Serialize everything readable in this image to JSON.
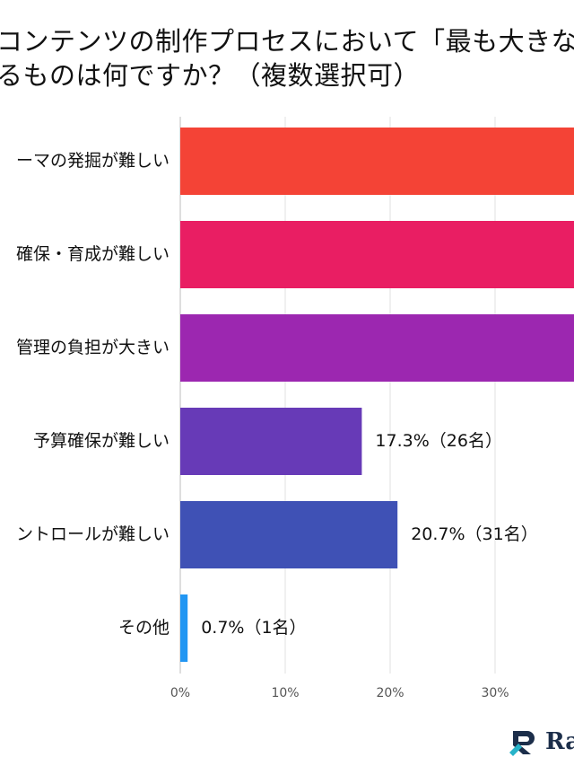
{
  "title": {
    "line1": "コンテンツの制作プロセスにおいて「最も大きな",
    "line2": "るものは何ですか？（複数選択可）"
  },
  "chart_data": {
    "type": "bar",
    "orientation": "horizontal",
    "categories": [
      "ーマの発掘が難しい",
      "確保・育成が難しい",
      "管理の負担が大きい",
      "予算確保が難しい",
      "ントロールが難しい",
      "その他"
    ],
    "values": [
      null,
      null,
      null,
      17.3,
      20.7,
      0.7
    ],
    "data_labels": [
      "",
      "",
      "",
      "17.3%（26名）",
      "20.7%（31名）",
      "0.7%（1名）"
    ],
    "colors": [
      "#f44336",
      "#e91e63",
      "#9c27b0",
      "#673ab7",
      "#3f51b5",
      "#2196f3"
    ],
    "x_ticks": [
      "0%",
      "10%",
      "20%",
      "30%"
    ],
    "xlim": [
      0,
      30
    ],
    "grid": true
  },
  "logo": {
    "text": "Ra"
  }
}
